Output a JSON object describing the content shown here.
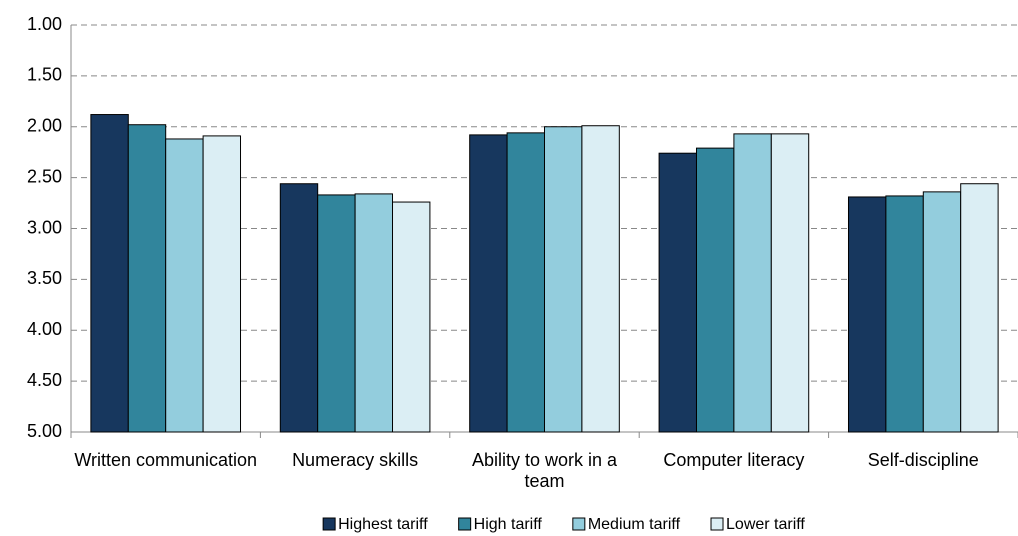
{
  "chart_data": {
    "type": "bar",
    "categories": [
      "Written communication",
      "Numeracy skills",
      "Ability to work in a team",
      "Computer literacy",
      "Self-discipline"
    ],
    "series": [
      {
        "name": "Highest tariff",
        "color": "#17375e",
        "values": [
          1.88,
          2.56,
          2.08,
          2.26,
          2.69
        ]
      },
      {
        "name": "High tariff",
        "color": "#31859c",
        "values": [
          1.98,
          2.67,
          2.06,
          2.21,
          2.68
        ]
      },
      {
        "name": "Medium tariff",
        "color": "#93cddd",
        "values": [
          2.12,
          2.66,
          2.0,
          2.07,
          2.64
        ]
      },
      {
        "name": "Lower tariff",
        "color": "#dbeef4",
        "values": [
          2.09,
          2.74,
          1.99,
          2.07,
          2.56
        ]
      }
    ],
    "ylim": [
      1,
      5
    ],
    "y_reversed": true,
    "yticks": [
      {
        "value": 1,
        "label": "1.00"
      },
      {
        "value": 1.5,
        "label": "1.50"
      },
      {
        "value": 2,
        "label": "2.00"
      },
      {
        "value": 2.5,
        "label": "2.50"
      },
      {
        "value": 3,
        "label": "3.00"
      },
      {
        "value": 3.5,
        "label": "3.50"
      },
      {
        "value": 4,
        "label": "4.00"
      },
      {
        "value": 4.5,
        "label": "4.50"
      },
      {
        "value": 5,
        "label": "5.00"
      }
    ],
    "grid": true,
    "legend": "bottom"
  }
}
